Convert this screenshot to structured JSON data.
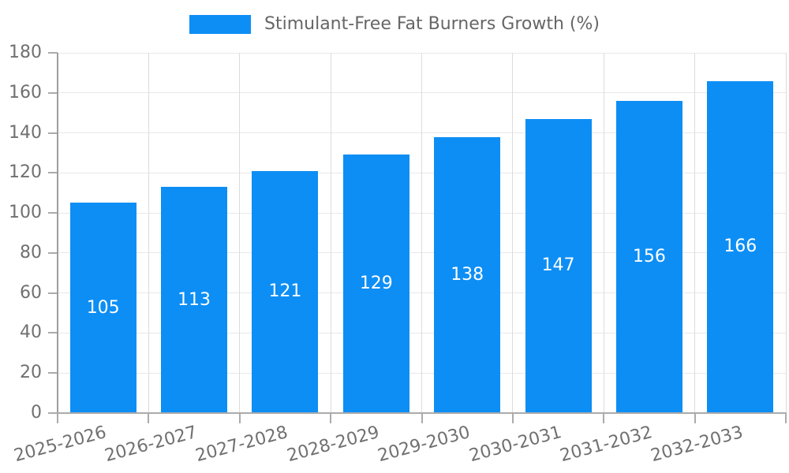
{
  "chart_data": {
    "type": "bar",
    "title": "Stimulant-Free Fat Burners Growth (%)",
    "categories": [
      "2025-2026",
      "2026-2027",
      "2027-2028",
      "2028-2029",
      "2029-2030",
      "2030-2031",
      "2031-2032",
      "2032-2033"
    ],
    "values": [
      105,
      113,
      121,
      129,
      138,
      147,
      156,
      166
    ],
    "xlabel": "",
    "ylabel": "",
    "ylim": [
      0,
      180
    ],
    "yticks": [
      0,
      20,
      40,
      60,
      80,
      100,
      120,
      140,
      160,
      180
    ],
    "grid": "horizontal and vertical light gray gridlines",
    "legend_position": "top-center",
    "value_labels": "white, centered vertically inside each bar",
    "colors": {
      "bar": "#0d8ef5",
      "value_label": "#ffffff",
      "tick_label": "#707070",
      "legend_text": "#666666",
      "hgrid": "#e8e8e8",
      "vgrid": "#dcdcdc",
      "axis_spine": "#a8a8a8"
    }
  }
}
